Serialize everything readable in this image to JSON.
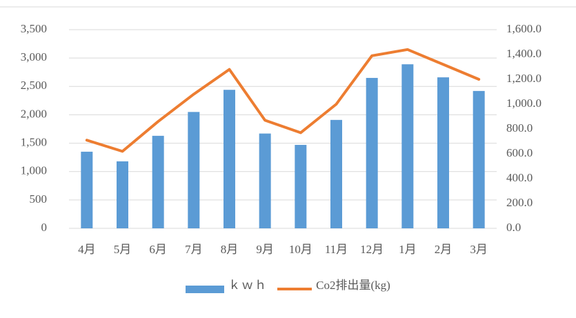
{
  "chart_data": {
    "type": "bar_line",
    "categories": [
      "4月",
      "5月",
      "6月",
      "7月",
      "8月",
      "9月",
      "10月",
      "11月",
      "12月",
      "1月",
      "2月",
      "3月"
    ],
    "series": [
      {
        "name": "ｋｗｈ",
        "color": "#5b9bd5",
        "type": "bar",
        "values": [
          1350,
          1180,
          1630,
          2050,
          2440,
          1670,
          1470,
          1910,
          2650,
          2890,
          2660,
          2420
        ]
      },
      {
        "name": "Co2排出量(kg)",
        "color": "#ed7d31",
        "type": "line",
        "axis": "y2",
        "values": [
          710,
          620,
          860,
          1080,
          1280,
          870,
          770,
          1000,
          1390,
          1440,
          1320,
          1200
        ]
      }
    ],
    "ylim": [
      0,
      3500
    ],
    "yticks": [
      0,
      500,
      {
        "value": 1000,
        "label": "1,000"
      },
      {
        "value": 1500,
        "label": "1,500"
      },
      {
        "value": 2000,
        "label": "2,000"
      },
      {
        "value": 2500,
        "label": "2,500"
      },
      {
        "value": 3000,
        "label": "3,000"
      },
      {
        "value": 3500,
        "label": "3,500"
      }
    ],
    "y2lim": [
      0,
      1600
    ],
    "y2ticks": [
      {
        "value": 0,
        "label": "0.0"
      },
      {
        "value": 200,
        "label": "200.0"
      },
      {
        "value": 400,
        "label": "400.0"
      },
      {
        "value": 600,
        "label": "600.0"
      },
      {
        "value": 800,
        "label": "800.0"
      },
      {
        "value": 1000,
        "label": "1,000.0"
      },
      {
        "value": 1200,
        "label": "1,200.0"
      },
      {
        "value": 1400,
        "label": "1,400.0"
      },
      {
        "value": 1600,
        "label": "1,600.0"
      }
    ],
    "grid": true,
    "legend": "bottom"
  }
}
